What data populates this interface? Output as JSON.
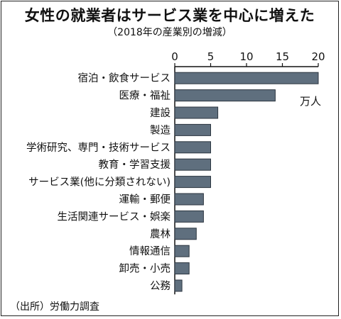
{
  "title": "女性の就業者はサービス業を中心に増えた",
  "subtitle": "（2018年の産業別の増減）",
  "source": "（出所）労働力調査",
  "colors": {
    "bar": "#5f6f7e",
    "bar_stroke": "#2c3640",
    "axis": "#111111"
  },
  "chart_data": {
    "type": "bar",
    "orientation": "horizontal",
    "title": "女性の就業者はサービス業を中心に増えた",
    "subtitle": "（2018年の産業別の増減）",
    "unit": "万人",
    "xlim": [
      0,
      20
    ],
    "xticks": [
      "0",
      "5",
      "10",
      "15",
      "20"
    ],
    "grid": false,
    "categories": [
      "宿泊・飲食サービス",
      "医療・福祉",
      "建設",
      "製造",
      "学術研究、専門・技術サービス",
      "教育・学習支援",
      "サービス業(他に分類されない)",
      "運輸・郵便",
      "生活関連サービス・娯楽",
      "農林",
      "情報通信",
      "卸売・小売",
      "公務"
    ],
    "values": [
      20,
      14,
      6,
      5,
      5,
      5,
      5,
      4,
      4,
      3,
      2,
      2,
      1
    ]
  }
}
